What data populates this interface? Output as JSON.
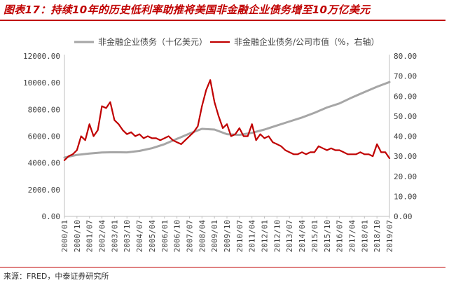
{
  "header": {
    "title": "图表17：持续10年的历史低利率助推将美国非金融企业债务增至10万亿美元"
  },
  "footer": {
    "source": "来源：FRED，中泰证券研究所"
  },
  "colors": {
    "accent": "#c00000",
    "debt_series": "#a6a6a6",
    "ratio_series": "#c00000"
  },
  "chart_data": {
    "type": "line",
    "legend_position": "top",
    "grid": false,
    "x_tick_labels": [
      "2000/01",
      "2000/10",
      "2001/07",
      "2002/04",
      "2003/01",
      "2003/10",
      "2004/07",
      "2005/04",
      "2006/01",
      "2006/10",
      "2007/07",
      "2008/04",
      "2009/01",
      "2009/10",
      "2010/07",
      "2011/04",
      "2012/01",
      "2012/10",
      "2013/07",
      "2014/04",
      "2015/01",
      "2015/10",
      "2016/07",
      "2017/04",
      "2018/01",
      "2018/10",
      "2019/07"
    ],
    "y_left": {
      "ylim": [
        0,
        12000
      ],
      "tick_labels": [
        "0.00",
        "2000.00",
        "4000.00",
        "6000.00",
        "8000.00",
        "10000.00",
        "12000.00"
      ]
    },
    "y_right": {
      "ylim": [
        0,
        80
      ],
      "tick_labels": [
        "0.00",
        "10.00",
        "20.00",
        "30.00",
        "40.00",
        "50.00",
        "60.00",
        "70.00",
        "80.00"
      ]
    },
    "series": [
      {
        "name": "非金融企业债务（十亿美元）",
        "axis": "left",
        "color": "#a6a6a6",
        "x": [
          "2000/01",
          "2000/10",
          "2001/07",
          "2002/04",
          "2003/01",
          "2003/10",
          "2004/07",
          "2005/04",
          "2006/01",
          "2006/10",
          "2007/07",
          "2008/04",
          "2009/01",
          "2009/10",
          "2010/07",
          "2011/04",
          "2012/01",
          "2012/10",
          "2013/07",
          "2014/04",
          "2015/01",
          "2015/10",
          "2016/07",
          "2017/04",
          "2018/01",
          "2018/10",
          "2019/07"
        ],
        "values": [
          4400,
          4600,
          4700,
          4780,
          4800,
          4790,
          4900,
          5100,
          5400,
          5800,
          6200,
          6550,
          6500,
          6150,
          6100,
          6250,
          6500,
          6800,
          7100,
          7400,
          7750,
          8150,
          8450,
          8900,
          9300,
          9700,
          10050
        ]
      },
      {
        "name": "非金融企业债务/公司市值（%，右轴）",
        "axis": "right",
        "color": "#c00000",
        "x": [
          "2000/01",
          "2000/04",
          "2000/07",
          "2000/10",
          "2001/01",
          "2001/04",
          "2001/07",
          "2001/10",
          "2002/01",
          "2002/04",
          "2002/07",
          "2002/10",
          "2003/01",
          "2003/04",
          "2003/07",
          "2003/10",
          "2004/01",
          "2004/04",
          "2004/07",
          "2004/10",
          "2005/01",
          "2005/04",
          "2005/07",
          "2005/10",
          "2006/01",
          "2006/04",
          "2006/07",
          "2006/10",
          "2007/01",
          "2007/04",
          "2007/07",
          "2007/10",
          "2008/01",
          "2008/04",
          "2008/07",
          "2008/10",
          "2009/01",
          "2009/04",
          "2009/07",
          "2009/10",
          "2010/01",
          "2010/04",
          "2010/07",
          "2010/10",
          "2011/01",
          "2011/04",
          "2011/07",
          "2011/10",
          "2012/01",
          "2012/04",
          "2012/07",
          "2012/10",
          "2013/01",
          "2013/04",
          "2013/07",
          "2013/10",
          "2014/01",
          "2014/04",
          "2014/07",
          "2014/10",
          "2015/01",
          "2015/04",
          "2015/07",
          "2015/10",
          "2016/01",
          "2016/04",
          "2016/07",
          "2016/10",
          "2017/01",
          "2017/04",
          "2017/07",
          "2017/10",
          "2018/01",
          "2018/04",
          "2018/07",
          "2018/10",
          "2019/01",
          "2019/04",
          "2019/07"
        ],
        "values": [
          28,
          30,
          31,
          33,
          40,
          38,
          46,
          40,
          43,
          55,
          54,
          57,
          48,
          46,
          43,
          41,
          42,
          40,
          41,
          39,
          40,
          39,
          39,
          38,
          39,
          40,
          38,
          37,
          36,
          38,
          40,
          42,
          45,
          55,
          63,
          68,
          57,
          50,
          44,
          46,
          40,
          41,
          44,
          40,
          40,
          46,
          38,
          41,
          39,
          40,
          37,
          36,
          35,
          33,
          32,
          31,
          31,
          32,
          31,
          32,
          32,
          35,
          34,
          33,
          34,
          33,
          33,
          32,
          31,
          31,
          31,
          32,
          31,
          31,
          30,
          36,
          32,
          32,
          29
        ]
      }
    ]
  }
}
